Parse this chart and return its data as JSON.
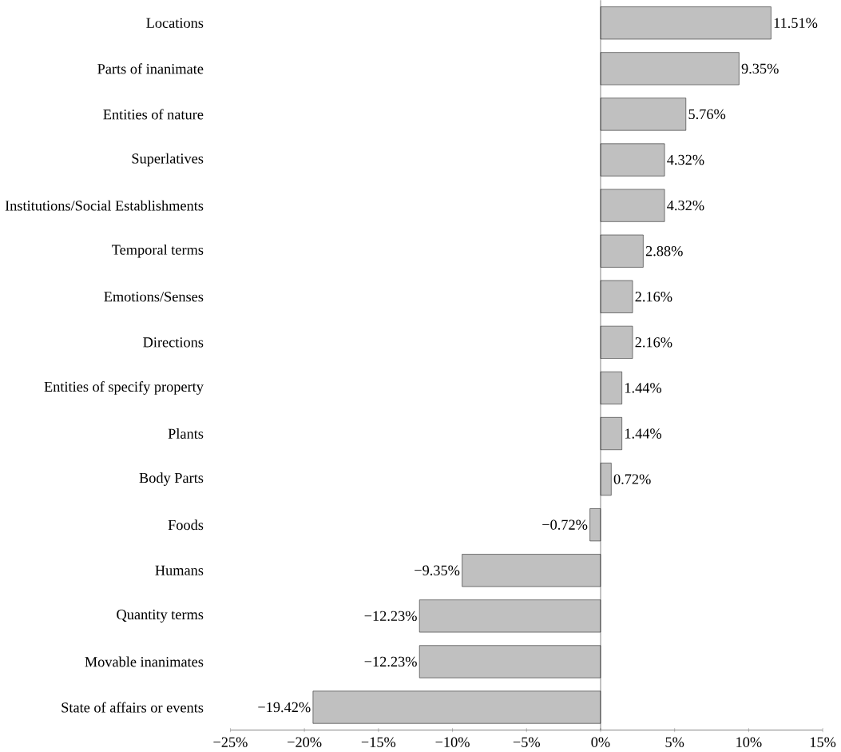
{
  "chart_data": {
    "type": "bar",
    "orientation": "horizontal",
    "categories": [
      "Locations",
      "Parts of inanimate",
      "Entities of nature",
      "Superlatives",
      "Institutions/Social Establishments",
      "Temporal terms",
      "Emotions/Senses",
      "Directions",
      "Entities of specify property",
      "Plants",
      "Body Parts",
      "Foods",
      "Humans",
      "Quantity terms",
      "Movable inanimates",
      "State of affairs or events"
    ],
    "values": [
      11.51,
      9.35,
      5.76,
      4.32,
      4.32,
      2.88,
      2.16,
      2.16,
      1.44,
      1.44,
      0.72,
      -0.72,
      -9.35,
      -12.23,
      -12.23,
      -19.42
    ],
    "value_labels": [
      "11.51%",
      "9.35%",
      "5.76%",
      "4.32%",
      "4.32%",
      "2.88%",
      "2.16%",
      "2.16%",
      "1.44%",
      "1.44%",
      "0.72%",
      "−0.72%",
      "−9.35%",
      "−12.23%",
      "−12.23%",
      "−19.42%"
    ],
    "color": "#c0c0c0",
    "xlim": [
      -25,
      15
    ],
    "xticks": [
      {
        "value": -25,
        "label": "−25%"
      },
      {
        "value": -20,
        "label": "−20%"
      },
      {
        "value": -15,
        "label": "−15%"
      },
      {
        "value": -10,
        "label": "−10%"
      },
      {
        "value": -5,
        "label": "−5%"
      },
      {
        "value": 0,
        "label": "0%"
      },
      {
        "value": 5,
        "label": "5%"
      },
      {
        "value": 10,
        "label": "10%"
      },
      {
        "value": 15,
        "label": "15%"
      }
    ]
  }
}
